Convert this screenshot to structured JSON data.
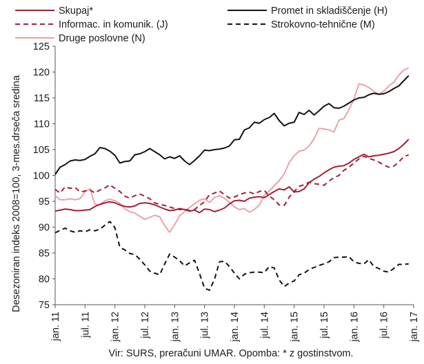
{
  "chart_data": {
    "type": "line",
    "ylabel": "Desezoniran indeks 2008=100, 3-mes.drseča sredina",
    "ylim": [
      75,
      125
    ],
    "yticks": [
      75,
      80,
      85,
      90,
      95,
      100,
      105,
      110,
      115,
      120,
      125
    ],
    "xticks": [
      "jan. 11",
      "jul. 11",
      "jan. 12",
      "jul. 12",
      "jan. 13",
      "jul. 13",
      "jan. 14",
      "jul. 14",
      "jan. 15",
      "jul. 15",
      "jan. 16",
      "jul. 16",
      "jan. 17"
    ],
    "x_start": "2011-01",
    "x_end": "2017-01",
    "grid": false,
    "source": "Vir: SURS, preračuni UMAR. Opomba: * z gostinstvom.",
    "series": [
      {
        "name": "Skupaj*",
        "color": "#a41f35",
        "dash": "solid",
        "values": [
          93.1,
          93.3,
          93.5,
          93.4,
          93.2,
          93.2,
          93.3,
          93.4,
          94.0,
          94.4,
          94.7,
          94.9,
          94.7,
          94.3,
          94.0,
          93.9,
          94.1,
          94.6,
          94.7,
          94.6,
          94.3,
          93.9,
          93.5,
          93.2,
          93.3,
          93.6,
          93.4,
          93.1,
          93.3,
          92.8,
          93.5,
          93.4,
          93.0,
          93.3,
          93.7,
          94.5,
          95.1,
          95.2,
          95.0,
          95.6,
          95.8,
          95.9,
          95.7,
          96.3,
          96.9,
          97.4,
          97.2,
          97.8,
          96.8,
          96.9,
          97.4,
          98.6,
          99.3,
          99.8,
          100.5,
          101.1,
          101.6,
          101.8,
          101.9,
          102.4,
          103.1,
          103.6,
          104.1,
          103.6,
          103.8,
          103.9,
          104.1,
          104.3,
          104.6,
          105.2,
          106.0,
          107.0
        ]
      },
      {
        "name": "Promet in skladiščenje (H)",
        "color": "#111111",
        "dash": "solid",
        "values": [
          100.2,
          101.6,
          102.1,
          102.8,
          103.0,
          102.9,
          103.1,
          103.7,
          104.2,
          105.4,
          105.2,
          104.7,
          103.9,
          102.4,
          102.7,
          102.8,
          104.0,
          104.2,
          104.6,
          105.2,
          104.6,
          104.0,
          103.2,
          103.6,
          103.3,
          103.8,
          102.8,
          102.1,
          102.9,
          103.8,
          104.9,
          104.8,
          105.0,
          105.1,
          105.3,
          105.7,
          106.9,
          107.0,
          108.8,
          109.2,
          110.3,
          110.1,
          110.8,
          111.2,
          112.0,
          110.6,
          109.6,
          110.1,
          110.3,
          112.2,
          111.8,
          112.6,
          111.7,
          112.5,
          113.4,
          113.9,
          113.1,
          113.0,
          113.4,
          114.0,
          114.6,
          115.0,
          115.1,
          115.6,
          115.9,
          115.7,
          115.8,
          116.2,
          116.8,
          117.3,
          118.3,
          119.3
        ]
      },
      {
        "name": "Informac. in komunik. (J)",
        "color": "#a41f35",
        "dash": "dashed",
        "values": [
          97.3,
          96.6,
          97.8,
          97.5,
          97.7,
          96.8,
          97.0,
          97.2,
          96.6,
          97.2,
          97.6,
          98.2,
          97.5,
          96.9,
          96.0,
          95.6,
          96.1,
          96.4,
          96.0,
          95.5,
          94.7,
          94.4,
          94.2,
          93.9,
          93.6,
          93.4,
          93.5,
          93.2,
          93.4,
          94.2,
          94.9,
          96.3,
          96.6,
          97.0,
          96.3,
          95.6,
          95.8,
          96.3,
          96.6,
          96.8,
          96.4,
          96.9,
          97.1,
          96.0,
          95.3,
          94.3,
          94.2,
          95.8,
          96.9,
          97.9,
          98.2,
          98.7,
          98.4,
          98.3,
          98.1,
          98.9,
          99.6,
          100.0,
          101.0,
          101.6,
          102.4,
          103.2,
          103.7,
          103.3,
          103.0,
          102.6,
          102.0,
          101.6,
          101.8,
          102.6,
          103.6,
          104.0
        ]
      },
      {
        "name": "Strokovno-tehnične (M)",
        "color": "#111111",
        "dash": "dashed",
        "values": [
          88.9,
          89.4,
          89.8,
          89.3,
          89.0,
          89.3,
          89.1,
          89.5,
          89.3,
          89.6,
          90.4,
          91.1,
          89.9,
          86.1,
          85.6,
          84.9,
          84.7,
          83.8,
          82.7,
          81.5,
          81.1,
          80.8,
          82.9,
          84.8,
          84.2,
          83.5,
          82.5,
          83.1,
          83.6,
          81.0,
          78.2,
          77.8,
          79.9,
          83.3,
          83.4,
          82.4,
          81.1,
          80.0,
          80.9,
          81.2,
          81.3,
          81.3,
          81.2,
          82.4,
          82.1,
          79.8,
          78.5,
          79.2,
          79.6,
          80.8,
          81.1,
          81.8,
          82.2,
          82.6,
          82.9,
          83.3,
          84.1,
          84.2,
          84.2,
          84.3,
          83.3,
          83.0,
          82.9,
          83.7,
          82.4,
          82.0,
          81.5,
          81.3,
          82.0,
          82.8,
          82.8,
          82.9
        ]
      },
      {
        "name": "Druge poslovne (N)",
        "color": "#e9a3a9",
        "dash": "solid",
        "values": [
          96.1,
          95.3,
          95.3,
          95.5,
          95.3,
          95.5,
          96.9,
          97.4,
          94.4,
          94.4,
          95.1,
          95.4,
          95.1,
          94.6,
          93.5,
          93.0,
          92.7,
          92.1,
          91.5,
          91.9,
          92.3,
          92.0,
          90.3,
          89.0,
          90.5,
          92.2,
          93.0,
          93.8,
          94.5,
          95.2,
          95.5,
          94.8,
          95.7,
          96.1,
          95.6,
          94.8,
          93.9,
          93.4,
          93.6,
          92.9,
          93.4,
          94.3,
          96.2,
          97.0,
          98.0,
          99.0,
          100.3,
          102.5,
          103.8,
          104.7,
          104.9,
          105.7,
          107.1,
          109.1,
          109.0,
          108.8,
          108.4,
          110.7,
          111.0,
          112.7,
          114.8,
          117.7,
          117.5,
          117.0,
          116.3,
          115.7,
          116.3,
          117.3,
          118.0,
          119.4,
          120.4,
          120.8
        ]
      }
    ]
  }
}
